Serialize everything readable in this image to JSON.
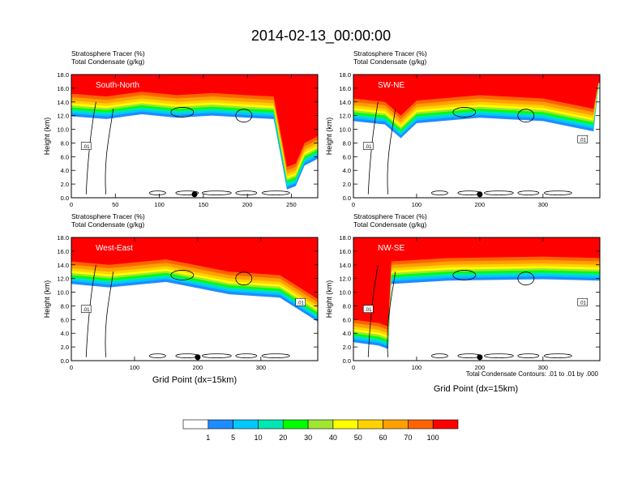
{
  "title": "2014-02-13_00:00:00",
  "xlabel": "Grid Point (dx=15km)",
  "contour_note": "Total Condensate Contours: .01 to .01 by .000",
  "colorbar": {
    "labels": [
      "1",
      "5",
      "10",
      "20",
      "30",
      "40",
      "50",
      "60",
      "70",
      "100"
    ],
    "colors": [
      "#ffffff",
      "#1e8cff",
      "#00c8ff",
      "#00e6b4",
      "#00ff00",
      "#a0e632",
      "#ffff00",
      "#ffd200",
      "#ffa000",
      "#ff6400",
      "#ff0000"
    ]
  },
  "chart_data": [
    {
      "type": "contour",
      "panel": "South-North",
      "header_line1": "Stratosphere Tracer   (%)",
      "header_line2": "Total Condensate   (g/kg)",
      "ylabel": "Height (km)",
      "xlim": [
        0,
        280
      ],
      "ylim": [
        0,
        18
      ],
      "xticks": [
        "0",
        "50",
        "100",
        "150",
        "200",
        "250"
      ],
      "yticks": [
        "0.0",
        "2.0",
        "4.0",
        "6.0",
        "8.0",
        "10.0",
        "12.0",
        "14.0",
        "16.0",
        "18.0"
      ],
      "marker_x": 140,
      "contour_labels": [
        ".01"
      ],
      "tracer_boundary_km": [
        [
          0,
          15.2
        ],
        [
          40,
          14.8
        ],
        [
          80,
          15.5
        ],
        [
          120,
          15.0
        ],
        [
          160,
          15.3
        ],
        [
          200,
          15.0
        ],
        [
          230,
          14.8
        ],
        [
          240,
          8.0
        ],
        [
          245,
          4.5
        ],
        [
          255,
          5.0
        ],
        [
          265,
          8.0
        ],
        [
          280,
          9.0
        ]
      ]
    },
    {
      "type": "contour",
      "panel": "SW-NE",
      "header_line1": "Stratosphere Tracer   (%)",
      "header_line2": "Total Condensate   (g/kg)",
      "ylabel": "Height (km)",
      "xlim": [
        0,
        390
      ],
      "ylim": [
        0,
        18
      ],
      "xticks": [
        "0",
        "100",
        "200",
        "300"
      ],
      "yticks": [
        "0.0",
        "2.0",
        "4.0",
        "6.0",
        "8.0",
        "10.0",
        "12.0",
        "14.0",
        "16.0",
        "18.0"
      ],
      "marker_x": 200,
      "contour_labels": [
        ".01",
        ".01"
      ],
      "tracer_boundary_km": [
        [
          0,
          14.5
        ],
        [
          50,
          14.0
        ],
        [
          75,
          12.0
        ],
        [
          100,
          14.2
        ],
        [
          200,
          15.0
        ],
        [
          300,
          14.5
        ],
        [
          380,
          13.0
        ]
      ]
    },
    {
      "type": "contour",
      "panel": "West-East",
      "header_line1": "Stratosphere Tracer   (%)",
      "header_line2": "Total Condensate   (g/kg)",
      "ylabel": "Height (km)",
      "xlim": [
        0,
        390
      ],
      "ylim": [
        0,
        18
      ],
      "xticks": [
        "0",
        "100",
        "200",
        "300"
      ],
      "yticks": [
        "0.0",
        "2.0",
        "4.0",
        "6.0",
        "8.0",
        "10.0",
        "12.0",
        "14.0",
        "16.0",
        "18.0"
      ],
      "marker_x": 200,
      "contour_labels": [
        ".01",
        ".01"
      ],
      "tracer_boundary_km": [
        [
          0,
          14.5
        ],
        [
          60,
          14.0
        ],
        [
          150,
          14.8
        ],
        [
          250,
          13.0
        ],
        [
          330,
          12.5
        ],
        [
          390,
          9.0
        ]
      ]
    },
    {
      "type": "contour",
      "panel": "NW-SE",
      "header_line1": "Stratosphere Tracer   (%)",
      "header_line2": "Total Condensate   (g/kg)",
      "ylabel": "Height (km)",
      "xlim": [
        0,
        390
      ],
      "ylim": [
        0,
        18
      ],
      "xticks": [
        "0",
        "100",
        "200",
        "300"
      ],
      "yticks": [
        "0.0",
        "2.0",
        "4.0",
        "6.0",
        "8.0",
        "10.0",
        "12.0",
        "14.0",
        "16.0",
        "18.0"
      ],
      "marker_x": 200,
      "contour_labels": [
        ".01",
        ".01"
      ],
      "tracer_boundary_km": [
        [
          0,
          6.0
        ],
        [
          40,
          5.5
        ],
        [
          55,
          5.0
        ],
        [
          60,
          14.5
        ],
        [
          150,
          15.0
        ],
        [
          300,
          15.2
        ],
        [
          390,
          15.0
        ]
      ]
    }
  ]
}
